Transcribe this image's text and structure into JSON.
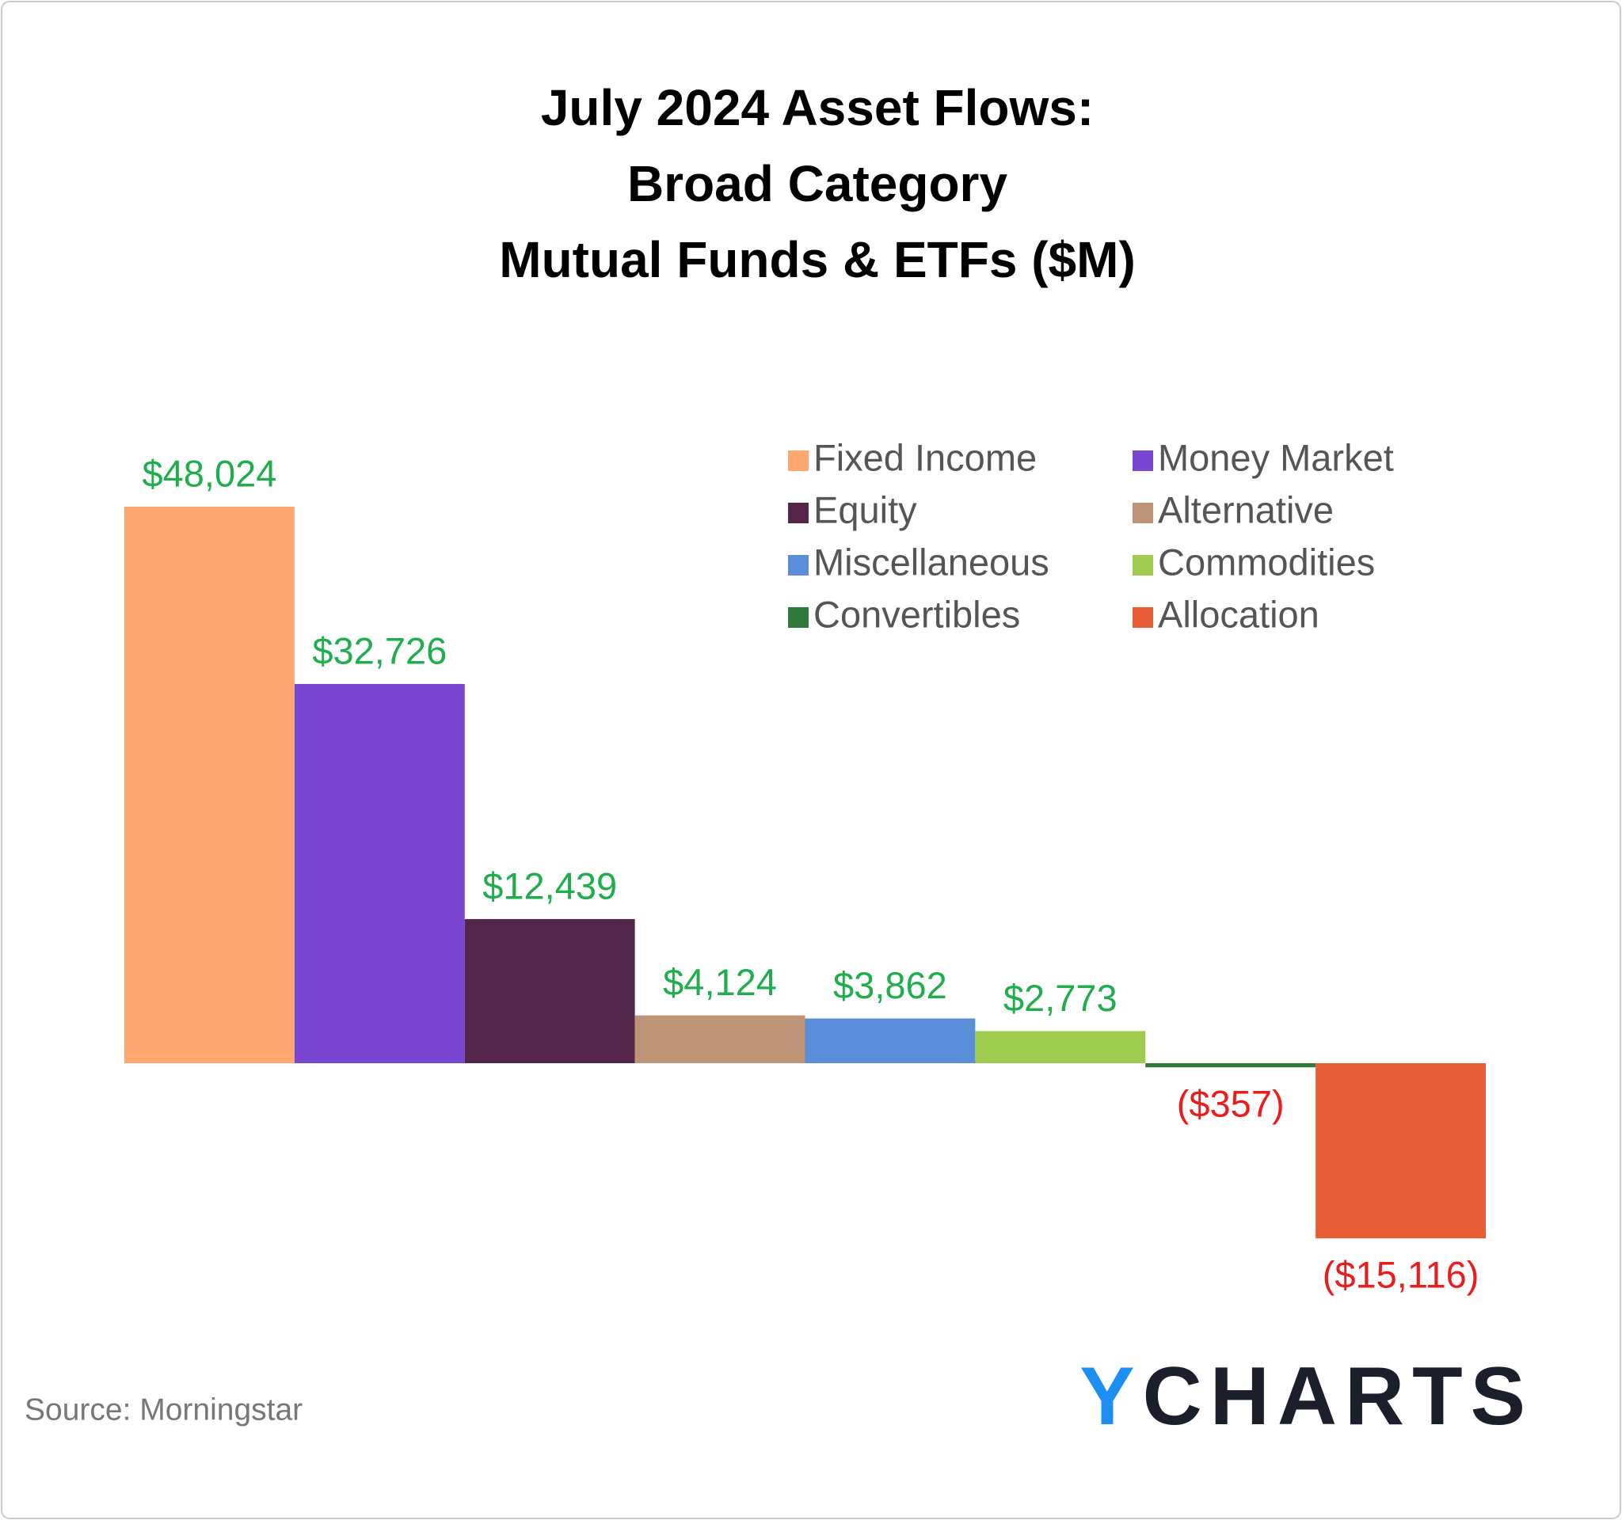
{
  "chart_data": {
    "type": "bar",
    "title": [
      "July 2024 Asset Flows:",
      "Broad Category",
      "Mutual Funds & ETFs ($M)"
    ],
    "categories": [
      "Fixed Income",
      "Money Market",
      "Equity",
      "Alternative",
      "Miscellaneous",
      "Commodities",
      "Convertibles",
      "Allocation"
    ],
    "values": [
      48024,
      32726,
      12439,
      4124,
      3862,
      2773,
      -357,
      -15116
    ],
    "value_labels": [
      "$48,024",
      "$32,726",
      "$12,439",
      "$4,124",
      "$3,862",
      "$2,773",
      "($357)",
      "($15,116)"
    ],
    "colors": [
      "#ffa76f",
      "#7846d0",
      "#55264c",
      "#bd9475",
      "#5b8ed9",
      "#9ecb4d",
      "#2f7a3b",
      "#e85c35"
    ],
    "label_colors": {
      "positive": "#1fae4b",
      "negative": "#ea1c1c"
    },
    "legend": "top-right",
    "source": "Source: Morningstar",
    "logo": "YCHARTS"
  }
}
